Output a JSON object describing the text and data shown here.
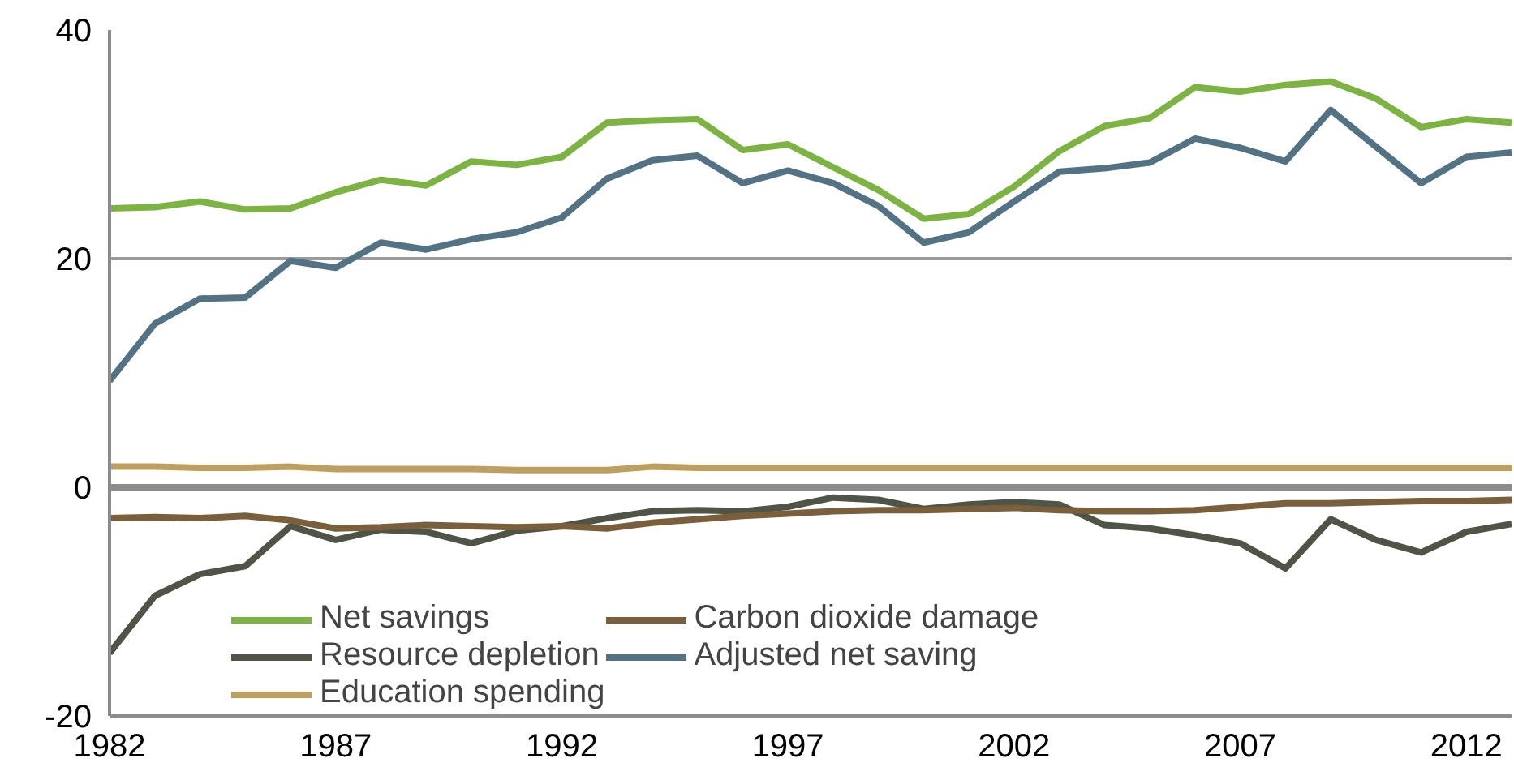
{
  "chart_data": {
    "type": "line",
    "x": [
      1982,
      1983,
      1984,
      1985,
      1986,
      1987,
      1988,
      1989,
      1990,
      1991,
      1992,
      1993,
      1994,
      1995,
      1996,
      1997,
      1998,
      1999,
      2000,
      2001,
      2002,
      2003,
      2004,
      2005,
      2006,
      2007,
      2008,
      2009,
      2010,
      2011,
      2012,
      2013
    ],
    "series": [
      {
        "name": "Net savings",
        "color": "#7cb342",
        "values": [
          24.4,
          24.5,
          25.0,
          24.3,
          24.4,
          25.8,
          26.9,
          26.4,
          28.5,
          28.2,
          28.9,
          31.9,
          32.1,
          32.2,
          29.5,
          30.0,
          28.0,
          26.0,
          23.5,
          23.9,
          26.3,
          29.4,
          31.6,
          32.3,
          35.0,
          34.6,
          35.2,
          35.5,
          34.0,
          31.5,
          32.2,
          31.9
        ]
      },
      {
        "name": "Resource depletion",
        "color": "#4f5446",
        "values": [
          -14.5,
          -9.5,
          -7.6,
          -6.9,
          -3.4,
          -4.6,
          -3.7,
          -3.9,
          -4.9,
          -3.8,
          -3.4,
          -2.7,
          -2.1,
          -2.0,
          -2.1,
          -1.7,
          -0.9,
          -1.1,
          -1.9,
          -1.5,
          -1.3,
          -1.5,
          -3.3,
          -3.6,
          -4.2,
          -4.9,
          -7.1,
          -2.8,
          -4.6,
          -5.7,
          -3.9,
          -3.2
        ]
      },
      {
        "name": "Education spending",
        "color": "#bf9f5f",
        "values": [
          1.8,
          1.8,
          1.7,
          1.7,
          1.8,
          1.6,
          1.6,
          1.6,
          1.6,
          1.5,
          1.5,
          1.5,
          1.8,
          1.7,
          1.7,
          1.7,
          1.7,
          1.7,
          1.7,
          1.7,
          1.7,
          1.7,
          1.7,
          1.7,
          1.7,
          1.7,
          1.7,
          1.7,
          1.7,
          1.7,
          1.7,
          1.7
        ]
      },
      {
        "name": "Carbon dioxide damage",
        "color": "#7a5f3c",
        "values": [
          -2.7,
          -2.6,
          -2.7,
          -2.5,
          -2.9,
          -3.6,
          -3.5,
          -3.3,
          -3.4,
          -3.5,
          -3.4,
          -3.6,
          -3.1,
          -2.8,
          -2.5,
          -2.3,
          -2.1,
          -2.0,
          -2.0,
          -1.9,
          -1.8,
          -2.0,
          -2.1,
          -2.1,
          -2.0,
          -1.7,
          -1.4,
          -1.4,
          -1.3,
          -1.2,
          -1.2,
          -1.1
        ]
      },
      {
        "name": "Adjusted net saving",
        "color": "#537384",
        "values": [
          9.3,
          14.3,
          16.5,
          16.6,
          19.8,
          19.2,
          21.4,
          20.8,
          21.7,
          22.3,
          23.6,
          27.0,
          28.6,
          29.0,
          26.6,
          27.7,
          26.6,
          24.6,
          21.4,
          22.3,
          25.0,
          27.6,
          27.9,
          28.4,
          30.5,
          29.7,
          28.5,
          33.0,
          29.8,
          26.6,
          28.9,
          29.3
        ]
      }
    ],
    "xlim": [
      1982,
      2013
    ],
    "xticks": [
      1982,
      1987,
      1992,
      1997,
      2002,
      2007,
      2012
    ],
    "ylim": [
      -20,
      40
    ],
    "yticks": [
      -20,
      0,
      20,
      40
    ],
    "ref_lines": [
      {
        "axis": "y",
        "value": 0,
        "color": "#8c8c8c"
      }
    ],
    "grid": "y",
    "legend": "bottom left",
    "marker": "none",
    "line_style": "solid"
  }
}
